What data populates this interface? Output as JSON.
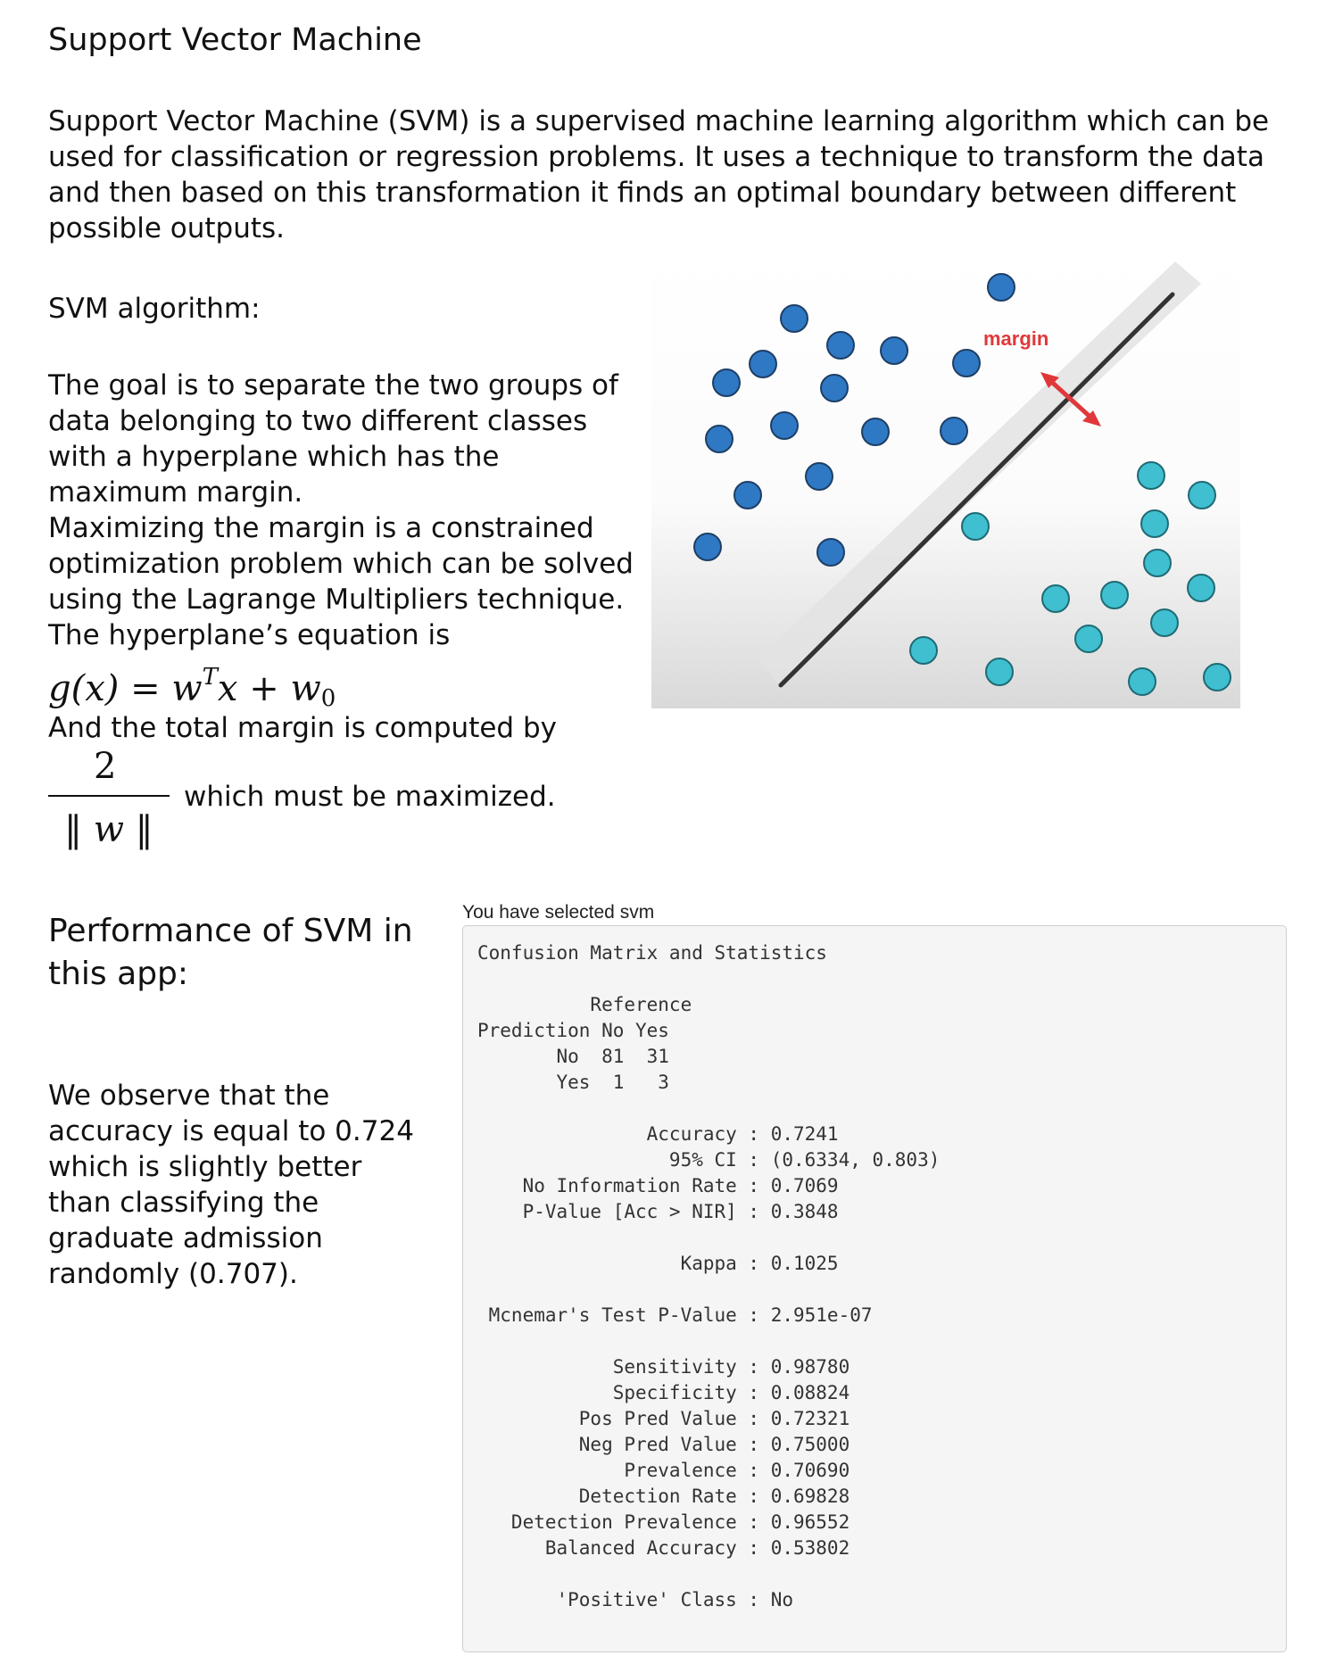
{
  "page": {
    "title": "Support Vector Machine",
    "intro": "Support Vector Machine (SVM) is a supervised machine learning algorithm which can be used for classification or regression problems. It uses a technique to transform the data and then based on this transformation it finds an optimal boundary between different possible outputs."
  },
  "algorithm": {
    "heading": "SVM algorithm:",
    "p1": "The goal is to separate the two groups of data belonging to two different classes with a hyperplane which has the maximum margin.",
    "p2": "Maximizing the margin is a constrained optimization problem which can be solved using the Lagrange Multipliers technique.",
    "p3": "The hyperplane’s equation is",
    "equation": {
      "lhs": "g(x)",
      "eq": "=",
      "w": "w",
      "T": "T",
      "x": "x",
      "plus": "+",
      "w0_base": "w",
      "w0_sub": "0"
    },
    "p4": "And the total margin is computed by",
    "fraction": {
      "numerator": "2",
      "denominator_w": "w",
      "tail": "which must be maximized."
    }
  },
  "figure": {
    "margin_label": "margin",
    "colors": {
      "blue": "#2f78c4",
      "teal": "#3fbfcf",
      "arrow": "#e0383a",
      "margin_label": "#e0383a",
      "line": "#333333"
    }
  },
  "performance": {
    "heading": "Performance of SVM in this app:",
    "observation": "We observe that the accuracy is equal to 0.724 which is slightly better than classifying the graduate admission randomly (0.707)."
  },
  "output": {
    "selected_label": "You have selected svm",
    "text": "Confusion Matrix and Statistics\n\n          Reference\nPrediction No Yes\n       No  81  31\n       Yes  1   3\n\n               Accuracy : 0.7241\n                 95% CI : (0.6334, 0.803)\n    No Information Rate : 0.7069\n    P-Value [Acc > NIR] : 0.3848\n\n                  Kappa : 0.1025\n\n Mcnemar's Test P-Value : 2.951e-07\n\n            Sensitivity : 0.98780\n            Specificity : 0.08824\n         Pos Pred Value : 0.72321\n         Neg Pred Value : 0.75000\n             Prevalence : 0.70690\n         Detection Rate : 0.69828\n   Detection Prevalence : 0.96552\n      Balanced Accuracy : 0.53802\n\n       'Positive' Class : No"
  }
}
